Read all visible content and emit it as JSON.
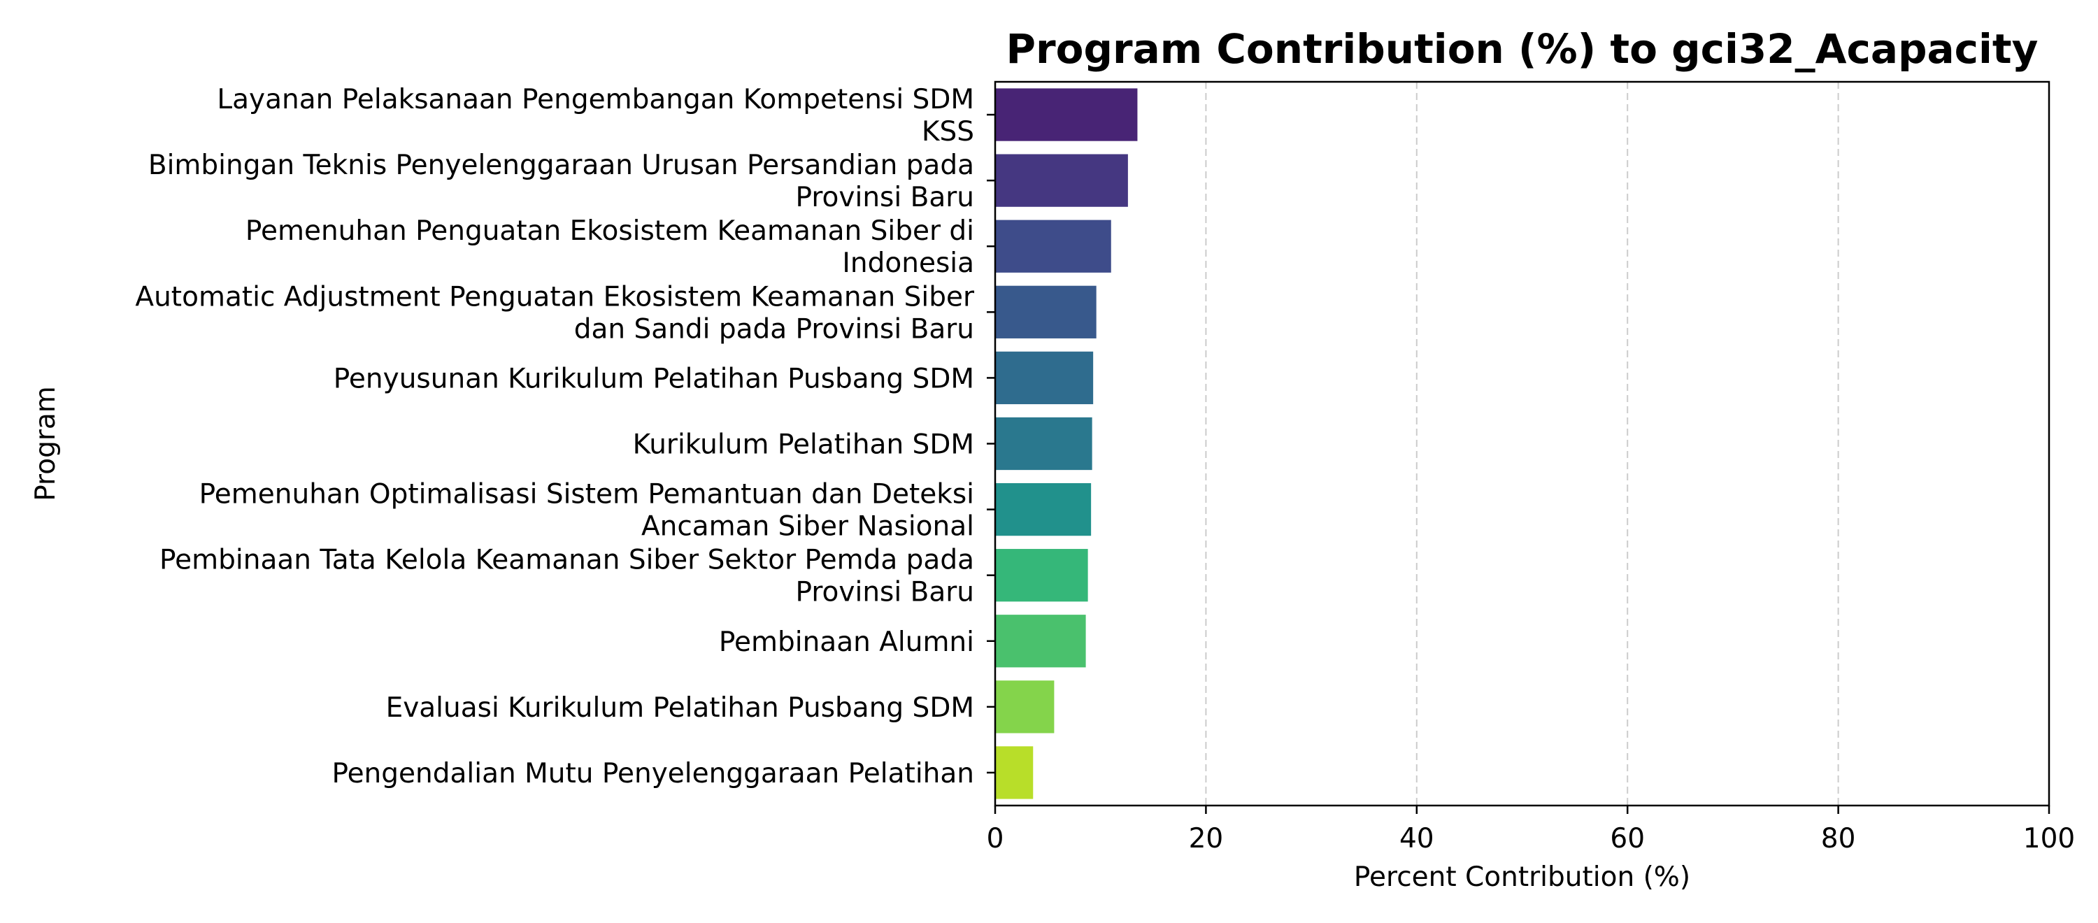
{
  "chart_data": {
    "type": "bar",
    "orientation": "horizontal",
    "title": "Program Contribution (%) to gci32_Acapacity",
    "xlabel": "Percent Contribution (%)",
    "ylabel": "Program",
    "xlim": [
      0,
      100
    ],
    "x_ticks": [
      "0",
      "20",
      "40",
      "60",
      "80",
      "100"
    ],
    "grid": "x-axis dashed",
    "categories": [
      [
        "Layanan Pelaksanaan Pengembangan Kompetensi SDM",
        "KSS"
      ],
      [
        "Bimbingan Teknis Penyelenggaraan Urusan Persandian pada",
        "Provinsi Baru"
      ],
      [
        "Pemenuhan Penguatan Ekosistem Keamanan Siber di",
        "Indonesia"
      ],
      [
        "Automatic Adjustment Penguatan Ekosistem Keamanan Siber",
        "dan Sandi pada Provinsi Baru"
      ],
      [
        "Penyusunan Kurikulum Pelatihan Pusbang SDM"
      ],
      [
        "Kurikulum Pelatihan SDM"
      ],
      [
        "Pemenuhan Optimalisasi Sistem Pemantuan dan Deteksi",
        "Ancaman Siber Nasional"
      ],
      [
        "Pembinaan Tata Kelola Keamanan Siber Sektor Pemda pada",
        "Provinsi Baru"
      ],
      [
        "Pembinaan Alumni"
      ],
      [
        "Evaluasi Kurikulum Pelatihan Pusbang SDM"
      ],
      [
        "Pengendalian Mutu Penyelenggaraan Pelatihan"
      ]
    ],
    "values": [
      13.5,
      12.6,
      11.0,
      9.6,
      9.3,
      9.2,
      9.1,
      8.8,
      8.6,
      5.6,
      3.6
    ],
    "colors": [
      "#482475",
      "#453781",
      "#3e4c8a",
      "#38598c",
      "#2f6c8e",
      "#2a788e",
      "#21918c",
      "#35b779",
      "#4ac16d",
      "#84d44b",
      "#b8de29"
    ]
  }
}
